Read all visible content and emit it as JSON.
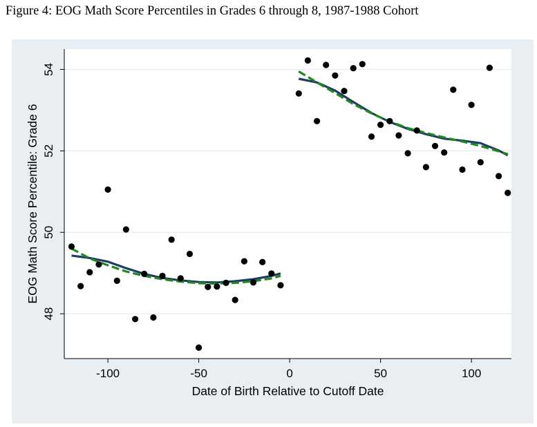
{
  "figure": {
    "title": "Figure 4: EOG Math Score Percentiles in Grades 6 through 8, 1987-1988 Cohort"
  },
  "colors": {
    "panel_background": "#e9eef2",
    "plot_background": "#ffffff",
    "gridline": "#e6eaee",
    "points": "#000000",
    "solid_fit": "#1f3a66",
    "dashed_fit": "#1d8a1d"
  },
  "chart_data": {
    "type": "scatter",
    "title": "",
    "xlabel": "Date of Birth Relative to Cutoff Date",
    "ylabel": "EOG Math Score Percentile: Grade 6",
    "xlim": [
      -124,
      122
    ],
    "ylim": [
      46.9,
      54.5
    ],
    "x_ticks": [
      -100,
      -50,
      0,
      50,
      100
    ],
    "y_ticks": [
      48,
      50,
      52,
      54
    ],
    "grid": true,
    "legend": "none",
    "series": [
      {
        "kind": "points",
        "x": [
          -120,
          -115,
          -110,
          -105,
          -100,
          -95,
          -90,
          -85,
          -80,
          -75,
          -70,
          -65,
          -60,
          -55,
          -50,
          -45,
          -40,
          -35,
          -30,
          -25,
          -20,
          -15,
          -10,
          -5,
          5,
          10,
          15,
          20,
          25,
          30,
          35,
          40,
          45,
          50,
          55,
          60,
          65,
          70,
          75,
          80,
          85,
          90,
          95,
          100,
          105,
          110,
          115,
          120
        ],
        "y": [
          49.65,
          48.68,
          49.02,
          49.21,
          51.05,
          48.81,
          50.07,
          47.87,
          48.98,
          47.91,
          48.93,
          49.82,
          48.87,
          49.47,
          47.17,
          48.66,
          48.67,
          48.76,
          48.34,
          49.29,
          48.77,
          49.27,
          48.99,
          48.7,
          53.41,
          54.22,
          52.73,
          54.11,
          53.85,
          53.47,
          54.03,
          54.13,
          52.35,
          52.64,
          52.73,
          52.38,
          51.94,
          52.5,
          51.6,
          52.12,
          51.96,
          53.5,
          51.54,
          53.13,
          51.72,
          54.04,
          51.38,
          50.97
        ]
      },
      {
        "kind": "solid-fit",
        "x": [
          -120,
          -110,
          -100,
          -90,
          -80,
          -70,
          -60,
          -50,
          -40,
          -30,
          -20,
          -10,
          -5
        ],
        "y": [
          49.43,
          49.37,
          49.28,
          49.12,
          48.98,
          48.88,
          48.82,
          48.78,
          48.77,
          48.8,
          48.85,
          48.93,
          48.99
        ]
      },
      {
        "kind": "dashed-fit",
        "x": [
          -120,
          -110,
          -100,
          -90,
          -80,
          -70,
          -60,
          -50,
          -40,
          -30,
          -20,
          -10,
          -5
        ],
        "y": [
          49.6,
          49.36,
          49.19,
          49.04,
          48.93,
          48.85,
          48.79,
          48.75,
          48.74,
          48.76,
          48.8,
          48.87,
          48.93
        ]
      },
      {
        "kind": "solid-fit",
        "x": [
          5,
          15,
          25,
          35,
          45,
          55,
          65,
          75,
          85,
          95,
          105,
          115,
          120
        ],
        "y": [
          53.77,
          53.68,
          53.48,
          53.2,
          52.93,
          52.71,
          52.54,
          52.41,
          52.3,
          52.25,
          52.19,
          52.01,
          51.89
        ]
      },
      {
        "kind": "dashed-fit",
        "x": [
          5,
          15,
          25,
          35,
          45,
          55,
          65,
          75,
          85,
          95,
          105,
          115,
          120
        ],
        "y": [
          53.95,
          53.68,
          53.42,
          53.15,
          52.92,
          52.72,
          52.56,
          52.44,
          52.33,
          52.23,
          52.12,
          51.99,
          51.92
        ]
      }
    ]
  }
}
